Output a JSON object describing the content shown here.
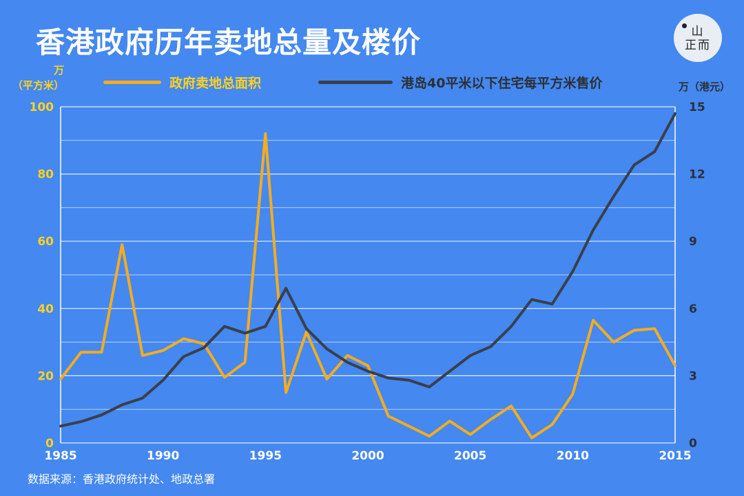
{
  "title": "香港政府历年卖地总量及楼价",
  "logo": {
    "text_top": "山",
    "text_bottom": "正而"
  },
  "source": "数据来源：香港政府统计处、地政总署",
  "colors": {
    "background": "#4488f0",
    "land_series": "#f5ac1e",
    "price_series": "#3a3f4b",
    "left_axis_text": "#ffd21e",
    "right_axis_text": "#2d2f36",
    "grid": "#ffffff"
  },
  "chart_data": {
    "type": "line",
    "x": [
      1985,
      1986,
      1987,
      1988,
      1989,
      1990,
      1991,
      1992,
      1993,
      1994,
      1995,
      1996,
      1997,
      1998,
      1999,
      2000,
      2001,
      2002,
      2003,
      2004,
      2005,
      2006,
      2007,
      2008,
      2009,
      2010,
      2011,
      2012,
      2013,
      2014,
      2015
    ],
    "xlim": [
      1985,
      2015
    ],
    "xticks": [
      1985,
      1990,
      1995,
      2000,
      2005,
      2010,
      2015
    ],
    "y_left": {
      "label_top": "万",
      "label_bottom": "（平方米）",
      "lim": [
        0,
        100
      ],
      "ticks": [
        0,
        20,
        40,
        60,
        80,
        100
      ]
    },
    "y_right": {
      "label": "万（港元）",
      "lim": [
        0,
        15
      ],
      "ticks": [
        0,
        3,
        6,
        9,
        12,
        15
      ]
    },
    "grid": true,
    "legend_position": "top",
    "series": [
      {
        "name": "政府卖地总面积",
        "axis": "left",
        "values": [
          19,
          27,
          27,
          59,
          26,
          27.5,
          31,
          29.5,
          19.5,
          24,
          92,
          15,
          33,
          19,
          26,
          23,
          8,
          5,
          2,
          6.5,
          2.5,
          7,
          11,
          1.5,
          5.5,
          14.5,
          36.5,
          30,
          33.5,
          34,
          23
        ]
      },
      {
        "name": "港岛40平米以下住宅每平方米售价",
        "axis": "right",
        "values": [
          0.75,
          0.95,
          1.25,
          1.7,
          2.0,
          2.8,
          3.85,
          4.25,
          5.2,
          4.9,
          5.2,
          6.9,
          5.1,
          4.2,
          3.6,
          3.2,
          2.9,
          2.8,
          2.5,
          3.2,
          3.9,
          4.3,
          5.2,
          6.4,
          6.2,
          7.65,
          9.5,
          11.0,
          12.4,
          13.0,
          14.7
        ]
      }
    ]
  }
}
